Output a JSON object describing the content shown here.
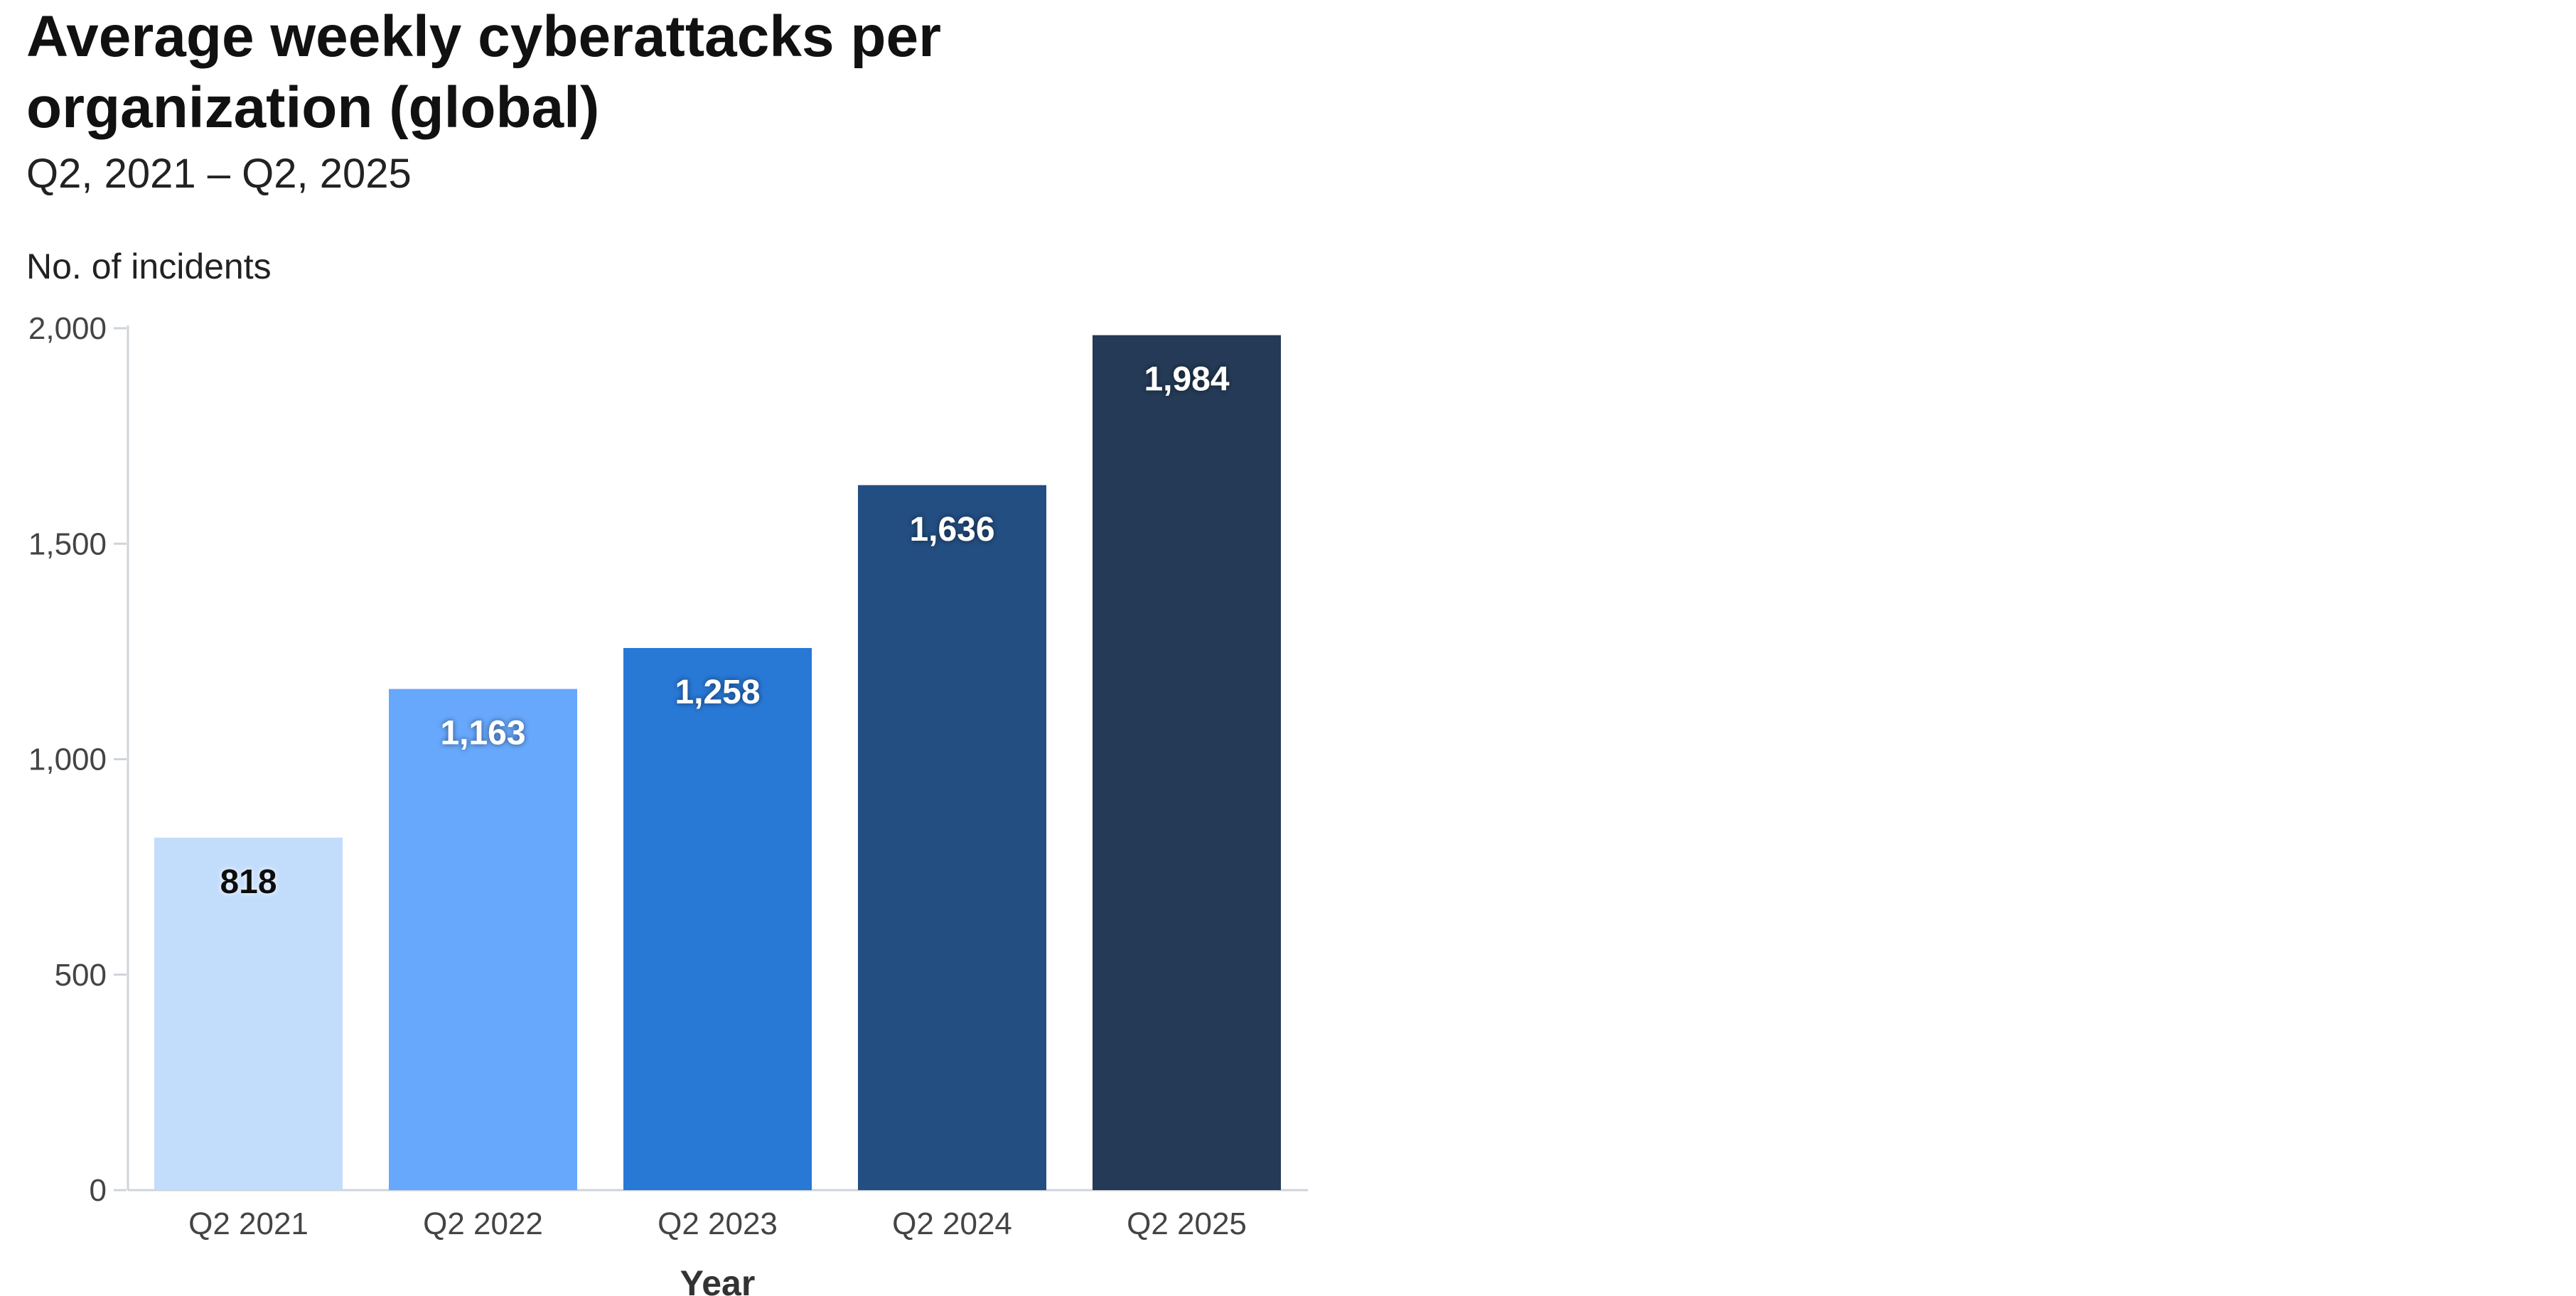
{
  "title": "Average weekly cyberattacks per organization (global)",
  "subtitle": "Q2, 2021 – Q2, 2025",
  "chart_data": {
    "type": "bar",
    "title": "Average weekly cyberattacks per organization (global)",
    "subtitle": "Q2, 2021 – Q2, 2025",
    "xlabel": "Year",
    "ylabel": "No. of incidents",
    "categories": [
      "Q2 2021",
      "Q2 2022",
      "Q2 2023",
      "Q2 2024",
      "Q2 2025"
    ],
    "values": [
      818,
      1163,
      1258,
      1636,
      1984
    ],
    "data_labels": [
      "818",
      "1,163",
      "1,258",
      "1,636",
      "1,984"
    ],
    "ylim": [
      0,
      2000
    ],
    "yticks": [
      0,
      500,
      1000,
      1500,
      2000
    ],
    "ytick_labels": [
      "0",
      "500",
      "1,000",
      "1,500",
      "2,000"
    ],
    "grid": false,
    "legend": "none",
    "colors": [
      "#c2dcfb",
      "#67a8fd",
      "#2878d6",
      "#234e82",
      "#243a56"
    ],
    "label_colors": [
      "#111111",
      "#ffffff",
      "#ffffff",
      "#ffffff",
      "#ffffff"
    ],
    "axis_color": "#cfd4da",
    "tick_label_color": "#444444"
  }
}
